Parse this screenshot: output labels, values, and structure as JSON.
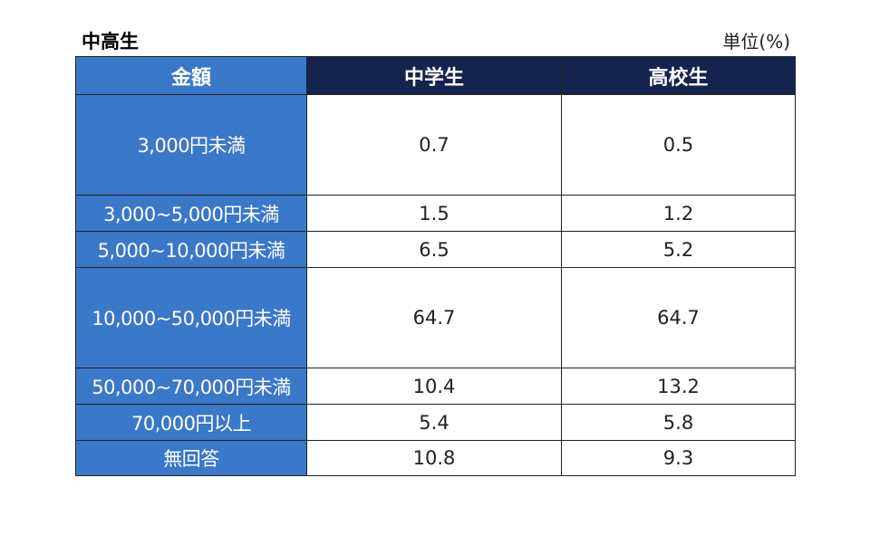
{
  "title": "中高生",
  "unit": "単位(%)",
  "table": {
    "headers": [
      "金額",
      "中学生",
      "高校生"
    ],
    "rows": [
      {
        "label": "3,000円未満",
        "junior": "0.7",
        "senior": "0.5"
      },
      {
        "label": "3,000~5,000円未満",
        "junior": "1.5",
        "senior": "1.2"
      },
      {
        "label": "5,000~10,000円未満",
        "junior": "6.5",
        "senior": "5.2"
      },
      {
        "label": "10,000~50,000円未満",
        "junior": "64.7",
        "senior": "64.7"
      },
      {
        "label": "50,000~70,000円未満",
        "junior": "10.4",
        "senior": "13.2"
      },
      {
        "label": "70,000円以上",
        "junior": "5.4",
        "senior": "5.8"
      },
      {
        "label": "無回答",
        "junior": "10.8",
        "senior": "9.3"
      }
    ]
  },
  "colors": {
    "header_amount_bg": "#3a78c9",
    "header_group_bg": "#14244f",
    "label_bg": "#3a78c9"
  }
}
